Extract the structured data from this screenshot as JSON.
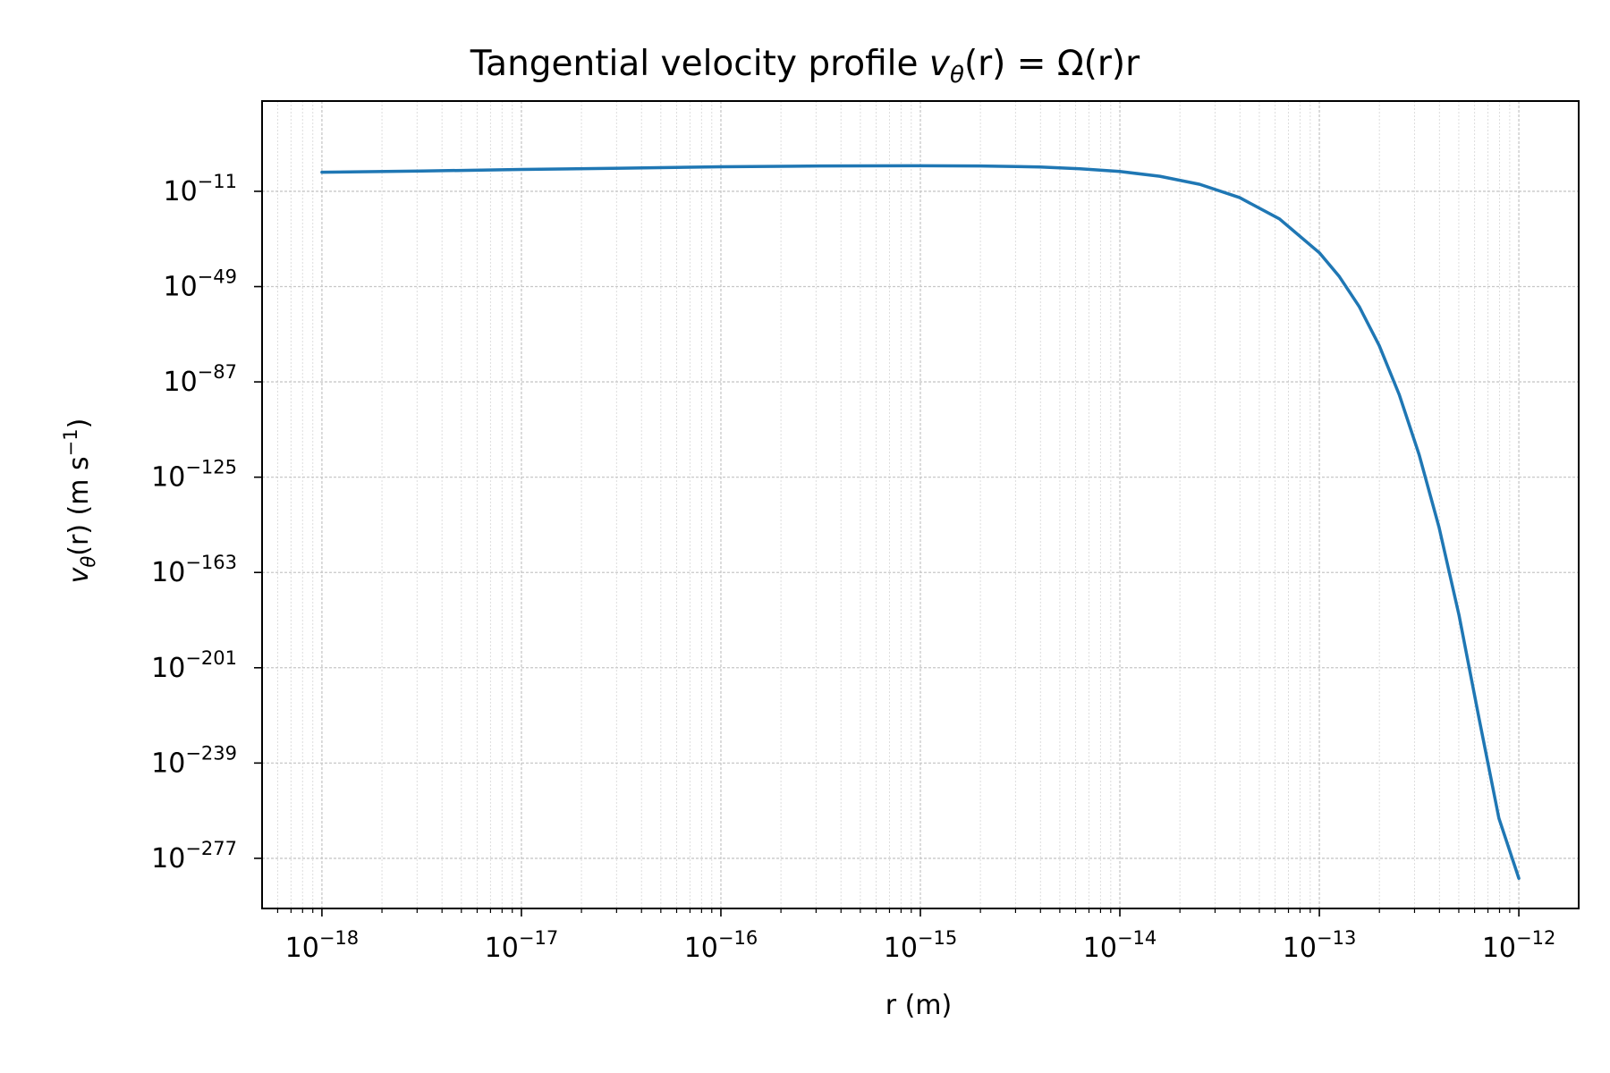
{
  "chart_data": {
    "type": "line",
    "title": {
      "prefix": "Tangential velocity profile ",
      "math_v": "v",
      "math_sub": "θ",
      "math_rest": "(r) = Ω(r)r"
    },
    "xlabel": "r (m)",
    "ylabel": {
      "v": "v",
      "sub": "θ",
      "mid": "(r) (m s",
      "sup": "−1",
      "end": ")"
    },
    "x_scale": "log",
    "y_scale": "log",
    "xlim_exp": [
      -18.3,
      -11.7
    ],
    "ylim_exp": [
      -297.0,
      25.0
    ],
    "x_ticks": [
      {
        "base": "10",
        "exp": "−18",
        "value": -18
      },
      {
        "base": "10",
        "exp": "−17",
        "value": -17
      },
      {
        "base": "10",
        "exp": "−16",
        "value": -16
      },
      {
        "base": "10",
        "exp": "−15",
        "value": -15
      },
      {
        "base": "10",
        "exp": "−14",
        "value": -14
      },
      {
        "base": "10",
        "exp": "−13",
        "value": -13
      },
      {
        "base": "10",
        "exp": "−12",
        "value": -12
      }
    ],
    "y_ticks": [
      {
        "base": "10",
        "exp": "−11",
        "value": -11
      },
      {
        "base": "10",
        "exp": "−49",
        "value": -49
      },
      {
        "base": "10",
        "exp": "−87",
        "value": -87
      },
      {
        "base": "10",
        "exp": "−125",
        "value": -125
      },
      {
        "base": "10",
        "exp": "−163",
        "value": -163
      },
      {
        "base": "10",
        "exp": "−201",
        "value": -201
      },
      {
        "base": "10",
        "exp": "−239",
        "value": -239
      },
      {
        "base": "10",
        "exp": "−277",
        "value": -277
      }
    ],
    "grid": true,
    "series": [
      {
        "color": "#1f77b4",
        "x_log10": [
          -18.0,
          -17.5,
          -17.0,
          -16.5,
          -16.0,
          -15.5,
          -15.0,
          -14.7,
          -14.4,
          -14.2,
          -14.0,
          -13.8,
          -13.6,
          -13.4,
          -13.2,
          -13.0,
          -12.9,
          -12.8,
          -12.7,
          -12.6,
          -12.5,
          -12.4,
          -12.3,
          -12.2,
          -12.1,
          -12.0
        ],
        "y_log10": [
          -3.4,
          -2.9,
          -2.3,
          -1.8,
          -1.2,
          -0.9,
          -0.8,
          -0.9,
          -1.3,
          -2.0,
          -3.1,
          -5.0,
          -8.2,
          -13.5,
          -22.0,
          -35.5,
          -45.0,
          -57.0,
          -72.5,
          -92.0,
          -116.0,
          -145.0,
          -180.0,
          -221.0,
          -261.0,
          -285.0
        ]
      }
    ]
  }
}
